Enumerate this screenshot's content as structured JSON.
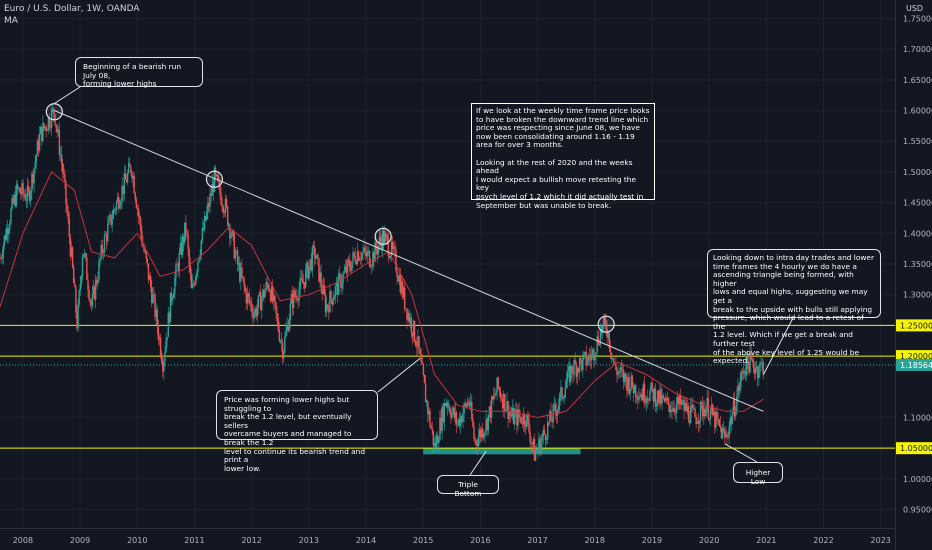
{
  "header": {
    "title": "Euro / U.S. Dollar, 1W, OANDA",
    "indicator": "MA",
    "currency": "USD"
  },
  "colors": {
    "background": "#131722",
    "up_candle": "#26a69a",
    "down_candle": "#ef5350",
    "ma_line": "#c8323c",
    "trendline": "#d1d4dc",
    "key_level": "#f5f500",
    "current_price": "#26a69a",
    "support_zone": "#26a69a"
  },
  "annotations": {
    "top_left": "Beginning of a bearish run July 08,\nforming lower highs",
    "center_box": "If we look at the weekly time frame price looks\nto have broken the downward trend line which\nprice was respecting since June 08, we have\nnow been consolidating around 1.16 - 1.19\narea for over 3 months.\n\nLooking at the rest of 2020 and the weeks ahead\nI would expect a bullish move retesting the key\npsych level of 1.2 which it did actually test in\nSeptember but was unable to break.",
    "right_box": "Looking down to intra day trades and lower\ntime frames the 4 hourly we do have a\nascending triangle being formed, with higher\nlows and equal highs, suggesting we may get a\nbreak to the upside with bulls still applying\npressure, which would lead to a retest of the\n1.2 level. Which if we get a break and further test\nof the above key level of 1.25 would be expected.",
    "bottom_left": "Price was forming lower highs but struggling to\nbreak the 1.2 level, but eventually sellers\novercame buyers and managed to break the 1.2\nlevel to continue its bearish trend and print a\nlower low.",
    "triple_bottom": "Triple Bottom",
    "higher_low": "Higher Low"
  },
  "chart_data": {
    "type": "candlestick",
    "title": "Euro / U.S. Dollar, 1W, OANDA",
    "indicator": "MA",
    "y_ticks": [
      "1.75000",
      "1.70000",
      "1.65000",
      "1.60000",
      "1.55000",
      "1.50000",
      "1.45000",
      "1.40000",
      "1.35000",
      "1.30000",
      "1.10000",
      "1.00000",
      "0.95000"
    ],
    "x_ticks": [
      "2008",
      "2009",
      "2010",
      "2011",
      "2012",
      "2013",
      "2014",
      "2015",
      "2016",
      "2017",
      "2018",
      "2019",
      "2020",
      "2021",
      "2022",
      "2023"
    ],
    "ylim": [
      0.92,
      1.78
    ],
    "xlim": [
      2007.6,
      2023.25
    ],
    "current_price": 1.18564,
    "current_price_label": "1.18564",
    "key_levels": [
      {
        "value": 1.25,
        "label": "1.25000"
      },
      {
        "value": 1.2,
        "label": "1.20000"
      },
      {
        "value": 1.05,
        "label": "1.05000"
      }
    ],
    "trendline": {
      "from": [
        2008.55,
        1.6
      ],
      "to": [
        2020.95,
        1.11
      ]
    },
    "touch_points": [
      [
        2008.55,
        1.598
      ],
      [
        2011.35,
        1.488
      ],
      [
        2014.3,
        1.395
      ],
      [
        2018.2,
        1.252
      ]
    ],
    "support_zone": {
      "x": [
        2015.0,
        2017.75
      ],
      "low": 1.04,
      "high": 1.05
    },
    "price_path": [
      [
        2007.6,
        1.36
      ],
      [
        2007.75,
        1.42
      ],
      [
        2007.9,
        1.47
      ],
      [
        2008.1,
        1.46
      ],
      [
        2008.3,
        1.56
      ],
      [
        2008.55,
        1.6
      ],
      [
        2008.7,
        1.5
      ],
      [
        2008.85,
        1.36
      ],
      [
        2008.95,
        1.25
      ],
      [
        2009.05,
        1.38
      ],
      [
        2009.2,
        1.28
      ],
      [
        2009.4,
        1.38
      ],
      [
        2009.6,
        1.44
      ],
      [
        2009.9,
        1.51
      ],
      [
        2010.1,
        1.38
      ],
      [
        2010.3,
        1.28
      ],
      [
        2010.45,
        1.19
      ],
      [
        2010.6,
        1.3
      ],
      [
        2010.85,
        1.41
      ],
      [
        2010.95,
        1.3
      ],
      [
        2011.1,
        1.38
      ],
      [
        2011.35,
        1.49
      ],
      [
        2011.55,
        1.44
      ],
      [
        2011.75,
        1.35
      ],
      [
        2011.9,
        1.3
      ],
      [
        2012.05,
        1.27
      ],
      [
        2012.3,
        1.32
      ],
      [
        2012.55,
        1.21
      ],
      [
        2012.7,
        1.29
      ],
      [
        2012.9,
        1.32
      ],
      [
        2013.1,
        1.37
      ],
      [
        2013.3,
        1.28
      ],
      [
        2013.6,
        1.33
      ],
      [
        2013.85,
        1.37
      ],
      [
        2014.1,
        1.36
      ],
      [
        2014.3,
        1.395
      ],
      [
        2014.5,
        1.36
      ],
      [
        2014.7,
        1.28
      ],
      [
        2014.9,
        1.22
      ],
      [
        2015.05,
        1.13
      ],
      [
        2015.2,
        1.05
      ],
      [
        2015.4,
        1.13
      ],
      [
        2015.6,
        1.09
      ],
      [
        2015.8,
        1.13
      ],
      [
        2015.9,
        1.06
      ],
      [
        2016.1,
        1.09
      ],
      [
        2016.3,
        1.15
      ],
      [
        2016.55,
        1.1
      ],
      [
        2016.8,
        1.1
      ],
      [
        2016.95,
        1.04
      ],
      [
        2017.1,
        1.07
      ],
      [
        2017.35,
        1.12
      ],
      [
        2017.6,
        1.18
      ],
      [
        2017.8,
        1.19
      ],
      [
        2017.95,
        1.2
      ],
      [
        2018.1,
        1.24
      ],
      [
        2018.2,
        1.252
      ],
      [
        2018.35,
        1.18
      ],
      [
        2018.55,
        1.16
      ],
      [
        2018.8,
        1.14
      ],
      [
        2019.0,
        1.14
      ],
      [
        2019.25,
        1.12
      ],
      [
        2019.5,
        1.12
      ],
      [
        2019.75,
        1.1
      ],
      [
        2019.95,
        1.12
      ],
      [
        2020.2,
        1.08
      ],
      [
        2020.28,
        1.065
      ],
      [
        2020.45,
        1.12
      ],
      [
        2020.6,
        1.18
      ],
      [
        2020.7,
        1.19
      ],
      [
        2020.85,
        1.18
      ],
      [
        2020.95,
        1.185
      ]
    ],
    "ma_path": [
      [
        2007.6,
        1.28
      ],
      [
        2008.0,
        1.4
      ],
      [
        2008.5,
        1.5
      ],
      [
        2008.9,
        1.47
      ],
      [
        2009.2,
        1.37
      ],
      [
        2009.6,
        1.36
      ],
      [
        2010.0,
        1.4
      ],
      [
        2010.4,
        1.33
      ],
      [
        2010.8,
        1.34
      ],
      [
        2011.2,
        1.37
      ],
      [
        2011.6,
        1.41
      ],
      [
        2012.0,
        1.38
      ],
      [
        2012.5,
        1.29
      ],
      [
        2013.0,
        1.3
      ],
      [
        2013.5,
        1.32
      ],
      [
        2014.0,
        1.35
      ],
      [
        2014.4,
        1.37
      ],
      [
        2014.8,
        1.3
      ],
      [
        2015.2,
        1.17
      ],
      [
        2015.6,
        1.12
      ],
      [
        2016.0,
        1.11
      ],
      [
        2016.5,
        1.11
      ],
      [
        2017.0,
        1.1
      ],
      [
        2017.5,
        1.11
      ],
      [
        2018.0,
        1.16
      ],
      [
        2018.4,
        1.19
      ],
      [
        2018.9,
        1.17
      ],
      [
        2019.4,
        1.14
      ],
      [
        2019.9,
        1.12
      ],
      [
        2020.3,
        1.11
      ],
      [
        2020.6,
        1.11
      ],
      [
        2020.95,
        1.13
      ]
    ]
  }
}
